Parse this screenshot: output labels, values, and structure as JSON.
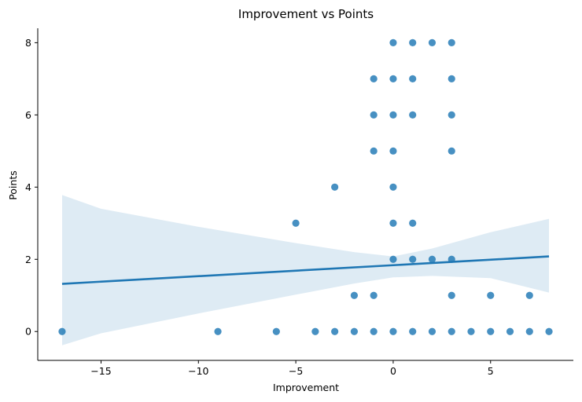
{
  "chart_data": {
    "type": "scatter",
    "title": "Improvement vs Points",
    "xlabel": "Improvement",
    "ylabel": "Points",
    "xlim": [
      -18.25,
      9.25
    ],
    "ylim": [
      -0.8,
      8.4
    ],
    "xticks": [
      -15,
      -10,
      -5,
      0,
      5
    ],
    "xtick_labels": [
      "−15",
      "−10",
      "−5",
      "0",
      "5"
    ],
    "yticks": [
      0,
      2,
      4,
      6,
      8
    ],
    "ytick_labels": [
      "0",
      "2",
      "4",
      "6",
      "8"
    ],
    "grid": false,
    "point_color": "#1f77b4",
    "points": [
      {
        "x": -17,
        "y": 0
      },
      {
        "x": -9,
        "y": 0
      },
      {
        "x": -6,
        "y": 0
      },
      {
        "x": -4,
        "y": 0
      },
      {
        "x": -3,
        "y": 0
      },
      {
        "x": -2,
        "y": 0
      },
      {
        "x": -1,
        "y": 0
      },
      {
        "x": 0,
        "y": 0
      },
      {
        "x": 1,
        "y": 0
      },
      {
        "x": 2,
        "y": 0
      },
      {
        "x": 3,
        "y": 0
      },
      {
        "x": 4,
        "y": 0
      },
      {
        "x": 5,
        "y": 0
      },
      {
        "x": 6,
        "y": 0
      },
      {
        "x": 7,
        "y": 0
      },
      {
        "x": 8,
        "y": 0
      },
      {
        "x": -2,
        "y": 1
      },
      {
        "x": -1,
        "y": 1
      },
      {
        "x": 3,
        "y": 1
      },
      {
        "x": 5,
        "y": 1
      },
      {
        "x": 7,
        "y": 1
      },
      {
        "x": 0,
        "y": 2
      },
      {
        "x": 1,
        "y": 2
      },
      {
        "x": 2,
        "y": 2
      },
      {
        "x": 3,
        "y": 2
      },
      {
        "x": -5,
        "y": 3
      },
      {
        "x": 0,
        "y": 3
      },
      {
        "x": 1,
        "y": 3
      },
      {
        "x": -3,
        "y": 4
      },
      {
        "x": 0,
        "y": 4
      },
      {
        "x": -1,
        "y": 5
      },
      {
        "x": 0,
        "y": 5
      },
      {
        "x": 3,
        "y": 5
      },
      {
        "x": -1,
        "y": 6
      },
      {
        "x": 0,
        "y": 6
      },
      {
        "x": 1,
        "y": 6
      },
      {
        "x": 3,
        "y": 6
      },
      {
        "x": -1,
        "y": 7
      },
      {
        "x": 0,
        "y": 7
      },
      {
        "x": 1,
        "y": 7
      },
      {
        "x": 3,
        "y": 7
      },
      {
        "x": 0,
        "y": 8
      },
      {
        "x": 1,
        "y": 8
      },
      {
        "x": 2,
        "y": 8
      },
      {
        "x": 3,
        "y": 8
      }
    ],
    "regression": {
      "x": [
        -17,
        8
      ],
      "y": [
        1.32,
        2.08
      ],
      "color": "#1f77b4"
    },
    "confidence_band": {
      "color": "#1f77b4",
      "x": [
        -17,
        -15,
        -10,
        -5,
        -2,
        0,
        2,
        5,
        8
      ],
      "upper": [
        3.78,
        3.4,
        2.9,
        2.45,
        2.2,
        2.08,
        2.3,
        2.75,
        3.12
      ],
      "lower": [
        -0.38,
        -0.05,
        0.5,
        1.02,
        1.33,
        1.5,
        1.54,
        1.48,
        1.08
      ]
    }
  }
}
